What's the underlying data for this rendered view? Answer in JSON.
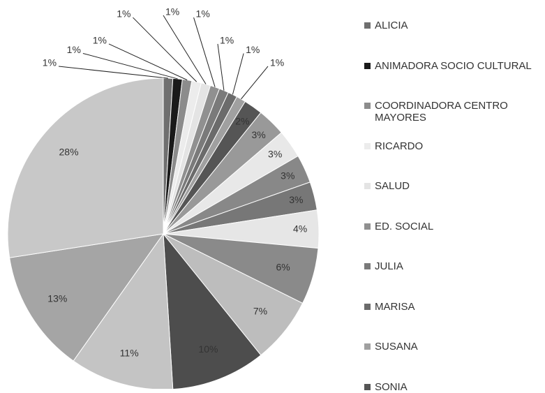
{
  "chart_data": {
    "type": "pie",
    "categories": [
      "ALICIA",
      "ANIMADORA SOCIO CULTURAL",
      "COORDINADORA CENTRO MAYORES",
      "RICARDO",
      "SALUD",
      "ED. SOCIAL",
      "JULIA",
      "MARISA",
      "SUSANA",
      "SONIA",
      null,
      null,
      null,
      null,
      null,
      null,
      null,
      null,
      null,
      null,
      null
    ],
    "values": [
      1,
      1,
      1,
      1,
      1,
      1,
      1,
      1,
      1,
      2,
      3,
      3,
      3,
      3,
      4,
      6,
      7,
      10,
      11,
      13,
      28
    ],
    "value_labels": [
      "1%",
      "1%",
      "1%",
      "1%",
      "1%",
      "1%",
      "1%",
      "1%",
      "1%",
      "2%",
      "3%",
      "3%",
      "3%",
      "3%",
      "4%",
      "6%",
      "7%",
      "10%",
      "11%",
      "13%",
      "28%"
    ],
    "colors": [
      "#6f6f6f",
      "#1a1a1a",
      "#8c8c8c",
      "#ececec",
      "#e4e4e4",
      "#909090",
      "#7a7a7a",
      "#6b6b6b",
      "#a0a0a0",
      "#555555",
      "#999999",
      "#e8e8e8",
      "#888888",
      "#777777",
      "#e6e6e6",
      "#8a8a8a",
      "#bdbdbd",
      "#4d4d4d",
      "#c4c4c4",
      "#a5a5a5",
      "#c8c8c8"
    ]
  }
}
